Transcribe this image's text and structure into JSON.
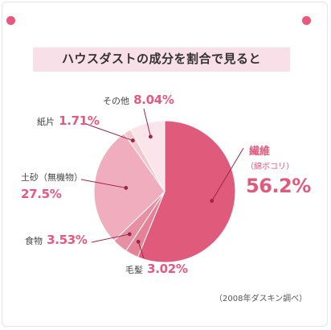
{
  "colors": {
    "accent": "#e05a7c",
    "label_pink": "#e8577e",
    "dots": "#e8577e",
    "title_highlight": "#f9dfe7"
  },
  "chart_data": {
    "type": "pie",
    "title": "ハウスダストの成分を割合で見ると",
    "unit": "%",
    "slices": [
      {
        "name": "繊維",
        "sub": "（綿ボコリ）",
        "value": 56.2,
        "value_text": "56.2%",
        "color": "#e05a7c"
      },
      {
        "name": "毛髪",
        "value": 3.02,
        "value_text": "3.02%",
        "color": "#e58297"
      },
      {
        "name": "食物",
        "value": 3.53,
        "value_text": "3.53%",
        "color": "#e890a3"
      },
      {
        "name": "土砂（無機物）",
        "value": 27.5,
        "value_text": "27.5%",
        "color": "#f0adbd"
      },
      {
        "name": "紙片",
        "value": 1.71,
        "value_text": "1.71%",
        "color": "#f3c6d0"
      },
      {
        "name": "その他",
        "value": 8.04,
        "value_text": "8.04%",
        "color": "#fae5ea"
      }
    ],
    "source": "（2008年ダスキン調べ）"
  }
}
